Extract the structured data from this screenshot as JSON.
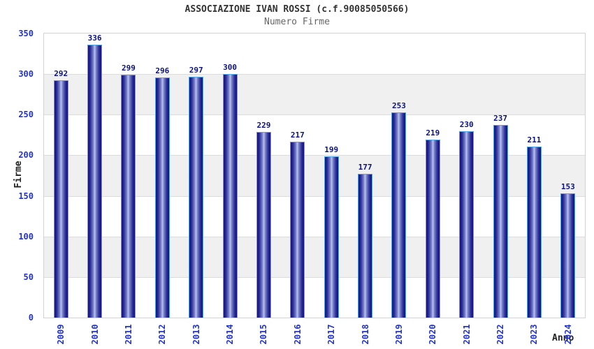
{
  "header": {
    "title": "ASSOCIAZIONE IVAN ROSSI (c.f.90085050566)",
    "subtitle": "Numero Firme"
  },
  "chart_data": {
    "type": "bar",
    "title": "ASSOCIAZIONE IVAN ROSSI (c.f.90085050566)",
    "subtitle": "Numero Firme",
    "xlabel": "Anno",
    "ylabel": "Firme",
    "categories": [
      "2009",
      "2010",
      "2011",
      "2012",
      "2013",
      "2014",
      "2015",
      "2016",
      "2017",
      "2018",
      "2019",
      "2020",
      "2021",
      "2022",
      "2023",
      "2024"
    ],
    "values": [
      292,
      336,
      299,
      296,
      297,
      300,
      229,
      217,
      199,
      177,
      253,
      219,
      230,
      237,
      211,
      153
    ],
    "ylim": [
      0,
      350
    ],
    "ytick_step": 50,
    "yticks": [
      0,
      50,
      100,
      150,
      200,
      250,
      300,
      350
    ],
    "grid": true,
    "alternating_bands": true,
    "legend": null,
    "value_labels_shown": true
  },
  "colors": {
    "title": "#333333",
    "subtitle": "#666666",
    "tick_label": "#2233cc",
    "value_label": "#0b1280",
    "axis_label": "#222222",
    "bar_dark": "#14137a",
    "bar_light": "#bdc4f0",
    "bar_border": "#56a5e8",
    "band_gray": "#f0f0f0",
    "gridline": "#dcdcdc",
    "plot_border": "#d3d3d3"
  }
}
